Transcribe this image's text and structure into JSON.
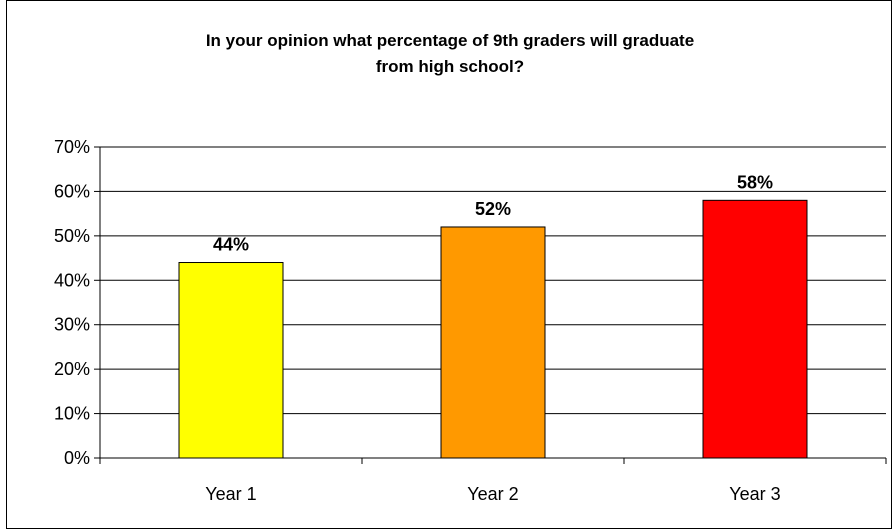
{
  "chart_data": {
    "type": "bar",
    "title_line1": "In your opinion what percentage of 9th graders will graduate",
    "title_line2": "from high school?",
    "categories": [
      "Year 1",
      "Year 2",
      "Year 3"
    ],
    "values": [
      44,
      52,
      58
    ],
    "data_labels": [
      "44%",
      "52%",
      "58%"
    ],
    "colors": [
      "#FFFF00",
      "#FF9900",
      "#FF0000"
    ],
    "ylim": [
      0,
      70
    ],
    "yticks": [
      0,
      10,
      20,
      30,
      40,
      50,
      60,
      70
    ],
    "ytick_labels": [
      "0%",
      "10%",
      "20%",
      "30%",
      "40%",
      "50%",
      "60%",
      "70%"
    ],
    "grid": true,
    "legend": "none",
    "xlabel": "",
    "ylabel": ""
  }
}
